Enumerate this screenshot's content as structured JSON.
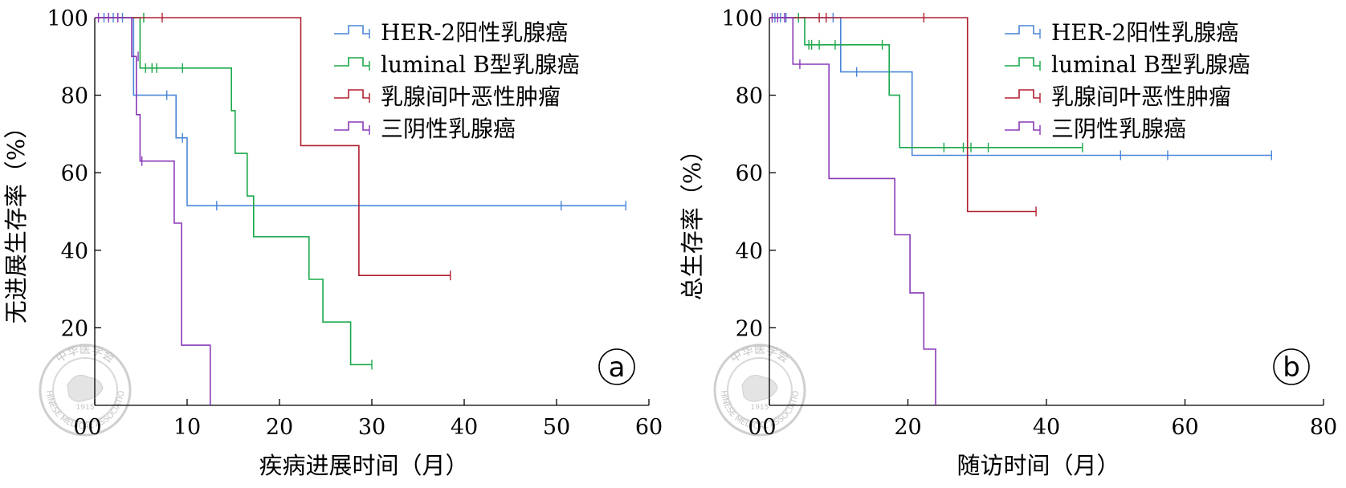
{
  "chart_data": [
    {
      "panel": "a",
      "type": "line",
      "title": "",
      "xlabel": "疾病进展时间（月）",
      "ylabel": "无进展生存率（%）",
      "xlim": [
        0,
        60
      ],
      "ylim": [
        0,
        100
      ],
      "xticks": [
        0,
        10,
        20,
        30,
        40,
        50,
        60
      ],
      "yticks": [
        20,
        40,
        60,
        80,
        100
      ],
      "legend_position": "top-right",
      "series": [
        {
          "name": "HER-2阳性乳腺癌",
          "color": "#4a86d8",
          "steps": [
            [
              0,
              100
            ],
            [
              4.2,
              100
            ],
            [
              4.2,
              80
            ],
            [
              8.8,
              80
            ],
            [
              8.8,
              69
            ],
            [
              10,
              69
            ],
            [
              10,
              51.5
            ],
            [
              57.5,
              51.5
            ]
          ],
          "censored": [
            [
              1,
              100
            ],
            [
              2,
              100
            ],
            [
              3,
              100
            ],
            [
              7.8,
              80
            ],
            [
              9.5,
              69
            ],
            [
              13.2,
              51.5
            ],
            [
              50.5,
              51.5
            ],
            [
              57.5,
              51.5
            ]
          ]
        },
        {
          "name": "luminal B型乳腺癌",
          "color": "#1aa84a",
          "steps": [
            [
              0,
              100
            ],
            [
              4.9,
              100
            ],
            [
              4.9,
              87
            ],
            [
              14.8,
              87
            ],
            [
              14.8,
              76
            ],
            [
              15.2,
              76
            ],
            [
              15.2,
              65
            ],
            [
              16.5,
              65
            ],
            [
              16.5,
              54
            ],
            [
              17.2,
              54
            ],
            [
              17.2,
              43.5
            ],
            [
              23.2,
              43.5
            ],
            [
              23.2,
              32.5
            ],
            [
              24.7,
              32.5
            ],
            [
              24.7,
              21.5
            ],
            [
              27.7,
              21.5
            ],
            [
              27.7,
              10.5
            ],
            [
              30,
              10.5
            ]
          ],
          "censored": [
            [
              5.3,
              100
            ],
            [
              5.5,
              87
            ],
            [
              6.2,
              87
            ],
            [
              6.7,
              87
            ],
            [
              9.5,
              87
            ],
            [
              30,
              10.5
            ]
          ]
        },
        {
          "name": "乳腺间叶恶性肿瘤",
          "color": "#b02030",
          "steps": [
            [
              0,
              100
            ],
            [
              22.3,
              100
            ],
            [
              22.3,
              67
            ],
            [
              28.6,
              67
            ],
            [
              28.6,
              33.5
            ],
            [
              38.5,
              33.5
            ]
          ],
          "censored": [
            [
              7.3,
              100
            ],
            [
              38.5,
              33.5
            ]
          ]
        },
        {
          "name": "三阴性乳腺癌",
          "color": "#8a3ab8",
          "steps": [
            [
              0,
              100
            ],
            [
              4,
              100
            ],
            [
              4,
              90
            ],
            [
              4.5,
              90
            ],
            [
              4.5,
              75
            ],
            [
              4.9,
              75
            ],
            [
              4.9,
              63
            ],
            [
              8.6,
              63
            ],
            [
              8.6,
              47
            ],
            [
              9.4,
              47
            ],
            [
              9.4,
              15.5
            ],
            [
              12.5,
              15.5
            ],
            [
              12.5,
              0
            ]
          ],
          "censored": [
            [
              0.4,
              100
            ],
            [
              1.5,
              100
            ],
            [
              2.5,
              100
            ],
            [
              4.7,
              90
            ],
            [
              5.1,
              63
            ]
          ]
        }
      ]
    },
    {
      "panel": "b",
      "type": "line",
      "title": "",
      "xlabel": "随访时间（月）",
      "ylabel": "总生存率（%）",
      "xlim": [
        0,
        80
      ],
      "ylim": [
        0,
        100
      ],
      "xticks": [
        0,
        20,
        40,
        60,
        80
      ],
      "yticks": [
        20,
        40,
        60,
        80,
        100
      ],
      "legend_position": "top-right",
      "series": [
        {
          "name": "HER-2阳性乳腺癌",
          "color": "#4a86d8",
          "steps": [
            [
              0,
              100
            ],
            [
              10.3,
              100
            ],
            [
              10.3,
              86
            ],
            [
              20.6,
              86
            ],
            [
              20.6,
              64.5
            ],
            [
              72.5,
              64.5
            ]
          ],
          "censored": [
            [
              0.8,
              100
            ],
            [
              1.6,
              100
            ],
            [
              2.4,
              100
            ],
            [
              9.2,
              100
            ],
            [
              12.6,
              86
            ],
            [
              50.7,
              64.5
            ],
            [
              57.5,
              64.5
            ],
            [
              72.5,
              64.5
            ]
          ]
        },
        {
          "name": "luminal B型乳腺癌",
          "color": "#1aa84a",
          "steps": [
            [
              0,
              100
            ],
            [
              5.1,
              100
            ],
            [
              5.1,
              93
            ],
            [
              17.3,
              93
            ],
            [
              17.3,
              80
            ],
            [
              18.8,
              80
            ],
            [
              18.8,
              66.5
            ],
            [
              45.2,
              66.5
            ]
          ],
          "censored": [
            [
              4.2,
              100
            ],
            [
              5.7,
              93
            ],
            [
              6.1,
              93
            ],
            [
              7.2,
              93
            ],
            [
              9.5,
              93
            ],
            [
              16.3,
              93
            ],
            [
              25.2,
              66.5
            ],
            [
              28,
              66.5
            ],
            [
              29.1,
              66.5
            ],
            [
              31.6,
              66.5
            ],
            [
              45.2,
              66.5
            ]
          ]
        },
        {
          "name": "乳腺间叶恶性肿瘤",
          "color": "#b02030",
          "steps": [
            [
              0,
              100
            ],
            [
              28.6,
              100
            ],
            [
              28.6,
              50
            ],
            [
              38.5,
              50
            ]
          ],
          "censored": [
            [
              7.2,
              100
            ],
            [
              8.2,
              100
            ],
            [
              22.3,
              100
            ],
            [
              38.5,
              50
            ]
          ]
        },
        {
          "name": "三阴性乳腺癌",
          "color": "#8a3ab8",
          "steps": [
            [
              0,
              100
            ],
            [
              3.4,
              100
            ],
            [
              3.4,
              88
            ],
            [
              8.6,
              88
            ],
            [
              8.6,
              58.5
            ],
            [
              18.1,
              58.5
            ],
            [
              18.1,
              44
            ],
            [
              20.3,
              44
            ],
            [
              20.3,
              29
            ],
            [
              22.3,
              29
            ],
            [
              22.3,
              14.5
            ],
            [
              24,
              14.5
            ],
            [
              24,
              0
            ]
          ],
          "censored": [
            [
              0.4,
              100
            ],
            [
              1.2,
              100
            ],
            [
              2.2,
              100
            ],
            [
              4.4,
              88
            ]
          ]
        }
      ]
    }
  ],
  "panels": [
    {
      "letter": "a",
      "xlabel": "疾病进展时间（月）",
      "ylabel": "无进展生存率（%）",
      "legend": [
        "HER-2阳性乳腺癌",
        "luminal B型乳腺癌",
        "乳腺间叶恶性肿瘤",
        "三阴性乳腺癌"
      ]
    },
    {
      "letter": "b",
      "xlabel": "随访时间（月）",
      "ylabel": "总生存率（%）",
      "legend": [
        "HER-2阳性乳腺癌",
        "luminal B型乳腺癌",
        "乳腺间叶恶性肿瘤",
        "三阴性乳腺癌"
      ]
    }
  ],
  "watermark": {
    "top_text": "中华医学会",
    "bottom_text": "CHINESE MEDICAL ASSOCIATION",
    "year": "1915"
  }
}
